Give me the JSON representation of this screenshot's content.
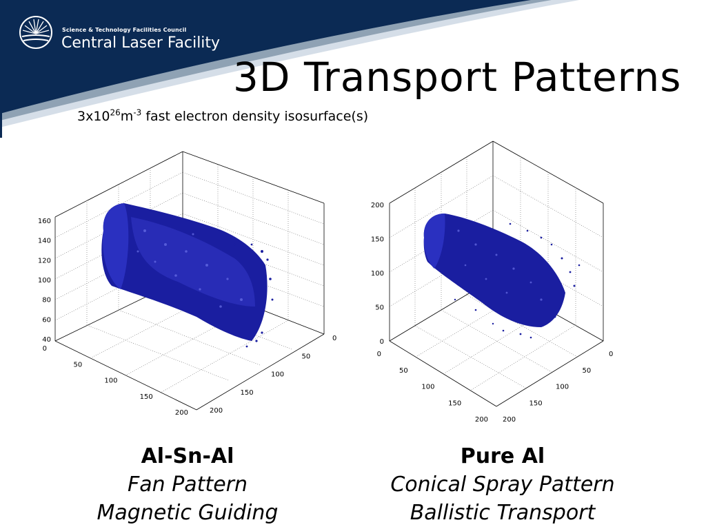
{
  "header": {
    "org_line": "Science & Technology Facilities Council",
    "org_name": "Central Laser Facility",
    "colors": {
      "navy": "#0b2a54",
      "swoosh_light": "#d5dee8",
      "swoosh_mid": "#8fa2b4"
    },
    "logo_icon": "sunburst-logo-icon"
  },
  "slide": {
    "title": "3D Transport Patterns",
    "subtitle_base": "3x10",
    "subtitle_exp1": "26",
    "subtitle_unit": "m",
    "subtitle_exp2": "-3",
    "subtitle_rest": " fast electron density isosurface(s)"
  },
  "chart_data": [
    {
      "type": "3d-isosurface",
      "z_ticks": [
        "40",
        "60",
        "80",
        "100",
        "120",
        "140",
        "160"
      ],
      "x_ticks": [
        "0",
        "50",
        "100",
        "150",
        "200"
      ],
      "y_ticks": [
        "0",
        "50",
        "100",
        "150",
        "200"
      ],
      "surface_color": "#1a1ea0"
    },
    {
      "type": "3d-isosurface",
      "z_ticks": [
        "0",
        "50",
        "100",
        "150",
        "200"
      ],
      "x_ticks": [
        "0",
        "50",
        "100",
        "150",
        "200"
      ],
      "y_ticks": [
        "0",
        "50",
        "100",
        "150",
        "200"
      ],
      "surface_color": "#1a1ea0"
    }
  ],
  "captions": [
    {
      "material": "Al-Sn-Al",
      "pattern": "Fan Pattern",
      "mechanism": "Magnetic Guiding"
    },
    {
      "material": "Pure Al",
      "pattern": "Conical Spray Pattern",
      "mechanism": "Ballistic Transport"
    }
  ]
}
